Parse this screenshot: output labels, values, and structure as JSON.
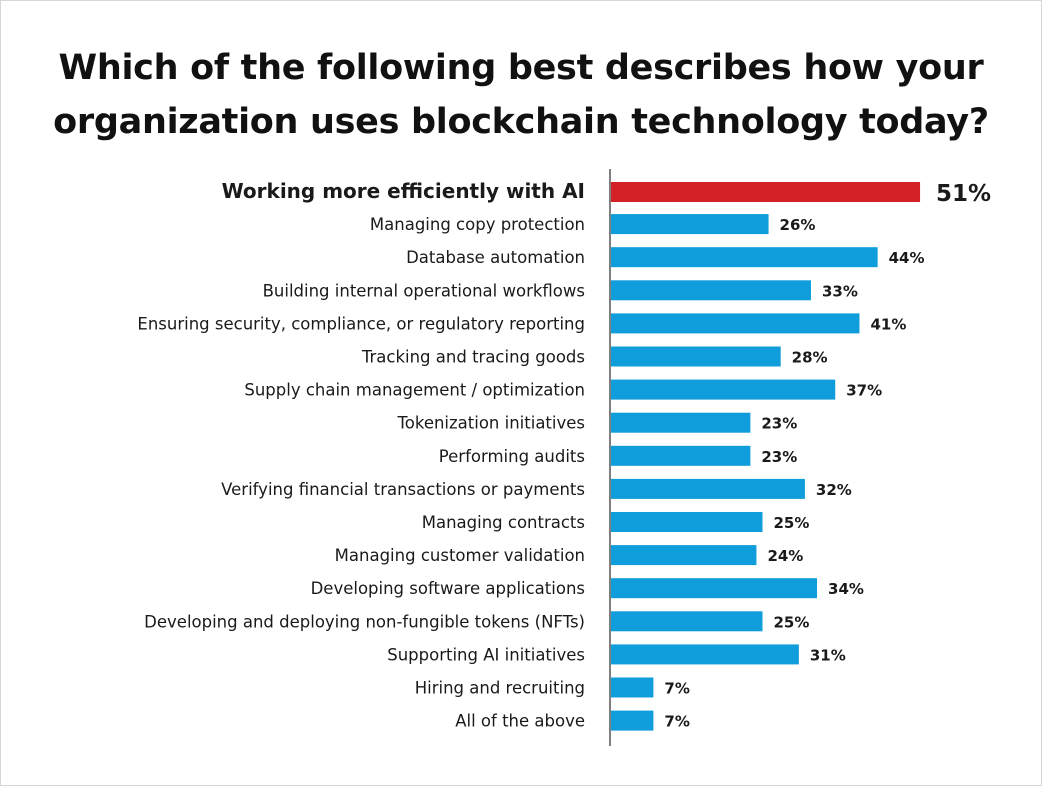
{
  "chart_data": {
    "type": "bar",
    "orientation": "horizontal",
    "title": "Which of the following best describes how your organization uses blockchain technology today?",
    "categories": [
      "Working more efficiently with AI",
      "Managing copy protection",
      "Database automation",
      "Building internal operational workflows",
      "Ensuring security, compliance, or regulatory reporting",
      "Tracking and tracing goods",
      "Supply chain management / optimization",
      "Tokenization initiatives",
      "Performing audits",
      "Verifying financial transactions or payments",
      "Managing contracts",
      "Managing customer validation",
      "Developing software applications",
      "Developing and deploying non-fungible tokens (NFTs)",
      "Supporting AI initiatives",
      "Hiring and recruiting",
      "All of the above"
    ],
    "values": [
      51,
      26,
      44,
      33,
      41,
      28,
      37,
      23,
      23,
      32,
      25,
      24,
      34,
      25,
      31,
      7,
      7
    ],
    "value_labels": [
      "51%",
      "26%",
      "44%",
      "33%",
      "41%",
      "28%",
      "37%",
      "23%",
      "23%",
      "32%",
      "25%",
      "24%",
      "34%",
      "25%",
      "31%",
      "7%",
      "7%"
    ],
    "highlight_index": 0,
    "colors": {
      "highlight": "#d42027",
      "default": "#109ddb",
      "axis": "#555555"
    },
    "xlabel": "",
    "ylabel": "",
    "xlim": [
      0,
      51
    ],
    "grid": false,
    "legend": "none"
  }
}
